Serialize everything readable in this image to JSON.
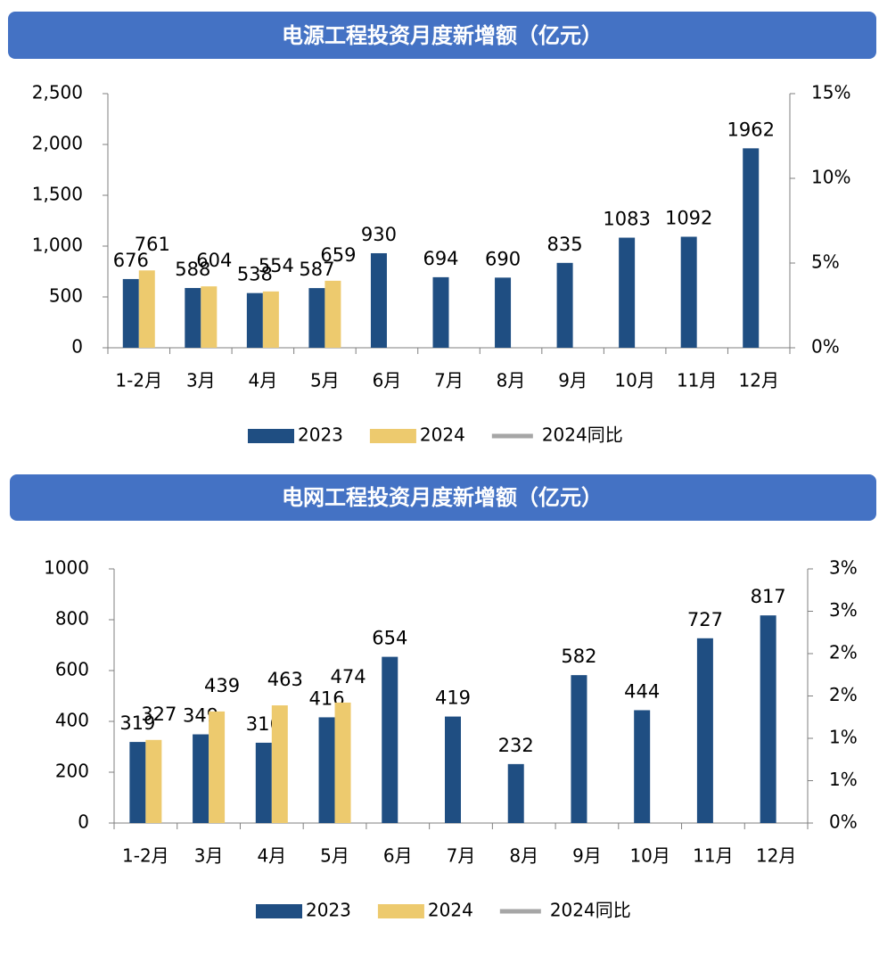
{
  "chart_data": [
    {
      "type": "bar",
      "title": "电源工程投资月度新增额（亿元）",
      "categories": [
        "1-2月",
        "3月",
        "4月",
        "5月",
        "6月",
        "7月",
        "8月",
        "9月",
        "10月",
        "11月",
        "12月"
      ],
      "series": [
        {
          "name": "2023",
          "color": "#1f4e82",
          "values": [
            676,
            588,
            538,
            587,
            930,
            694,
            690,
            835,
            1083,
            1092,
            1962
          ]
        },
        {
          "name": "2024",
          "color": "#edca6e",
          "values": [
            761,
            604,
            554,
            659,
            null,
            null,
            null,
            null,
            null,
            null,
            null
          ]
        },
        {
          "name": "2024同比",
          "color": "#a6a6a6",
          "axis": "y2",
          "line": true,
          "values": [
            null,
            null,
            null,
            null,
            null,
            null,
            null,
            null,
            null,
            null,
            null
          ]
        }
      ],
      "ylim": [
        0,
        2500
      ],
      "yticks": [
        0,
        500,
        {
          "value": 1000,
          "label": "1,000"
        },
        {
          "value": 1500,
          "label": "1,500"
        },
        {
          "value": 2000,
          "label": "2,000"
        },
        {
          "value": 2500,
          "label": "2,500"
        }
      ],
      "y2lim": [
        0,
        15
      ],
      "y2ticks": [
        {
          "value": 0,
          "label": "0%"
        },
        {
          "value": 5,
          "label": "5%"
        },
        {
          "value": 10,
          "label": "10%"
        },
        {
          "value": 15,
          "label": "15%"
        }
      ]
    },
    {
      "type": "bar",
      "title": "电网工程投资月度新增额（亿元）",
      "categories": [
        "1-2月",
        "3月",
        "4月",
        "5月",
        "6月",
        "7月",
        "8月",
        "9月",
        "10月",
        "11月",
        "12月"
      ],
      "series": [
        {
          "name": "2023",
          "color": "#1f4e82",
          "values": [
            319,
            349,
            316,
            416,
            654,
            419,
            232,
            582,
            444,
            727,
            817
          ]
        },
        {
          "name": "2024",
          "color": "#edca6e",
          "values": [
            327,
            439,
            463,
            474,
            null,
            null,
            null,
            null,
            null,
            null,
            null
          ]
        },
        {
          "name": "2024同比",
          "color": "#a6a6a6",
          "axis": "y2",
          "line": true,
          "values": [
            null,
            null,
            null,
            null,
            null,
            null,
            null,
            null,
            null,
            null,
            null
          ]
        }
      ],
      "ylim": [
        0,
        1000
      ],
      "yticks": [
        0,
        200,
        400,
        600,
        800,
        1000
      ],
      "y2lim": [
        0,
        3
      ],
      "y2ticks": [
        {
          "value": 0,
          "label": "0%"
        },
        {
          "value": 0.5,
          "label": "1%"
        },
        {
          "value": 1,
          "label": "1%"
        },
        {
          "value": 1.5,
          "label": "2%"
        },
        {
          "value": 2,
          "label": "2%"
        },
        {
          "value": 2.5,
          "label": "3%"
        },
        {
          "value": 3,
          "label": "3%"
        }
      ]
    }
  ]
}
